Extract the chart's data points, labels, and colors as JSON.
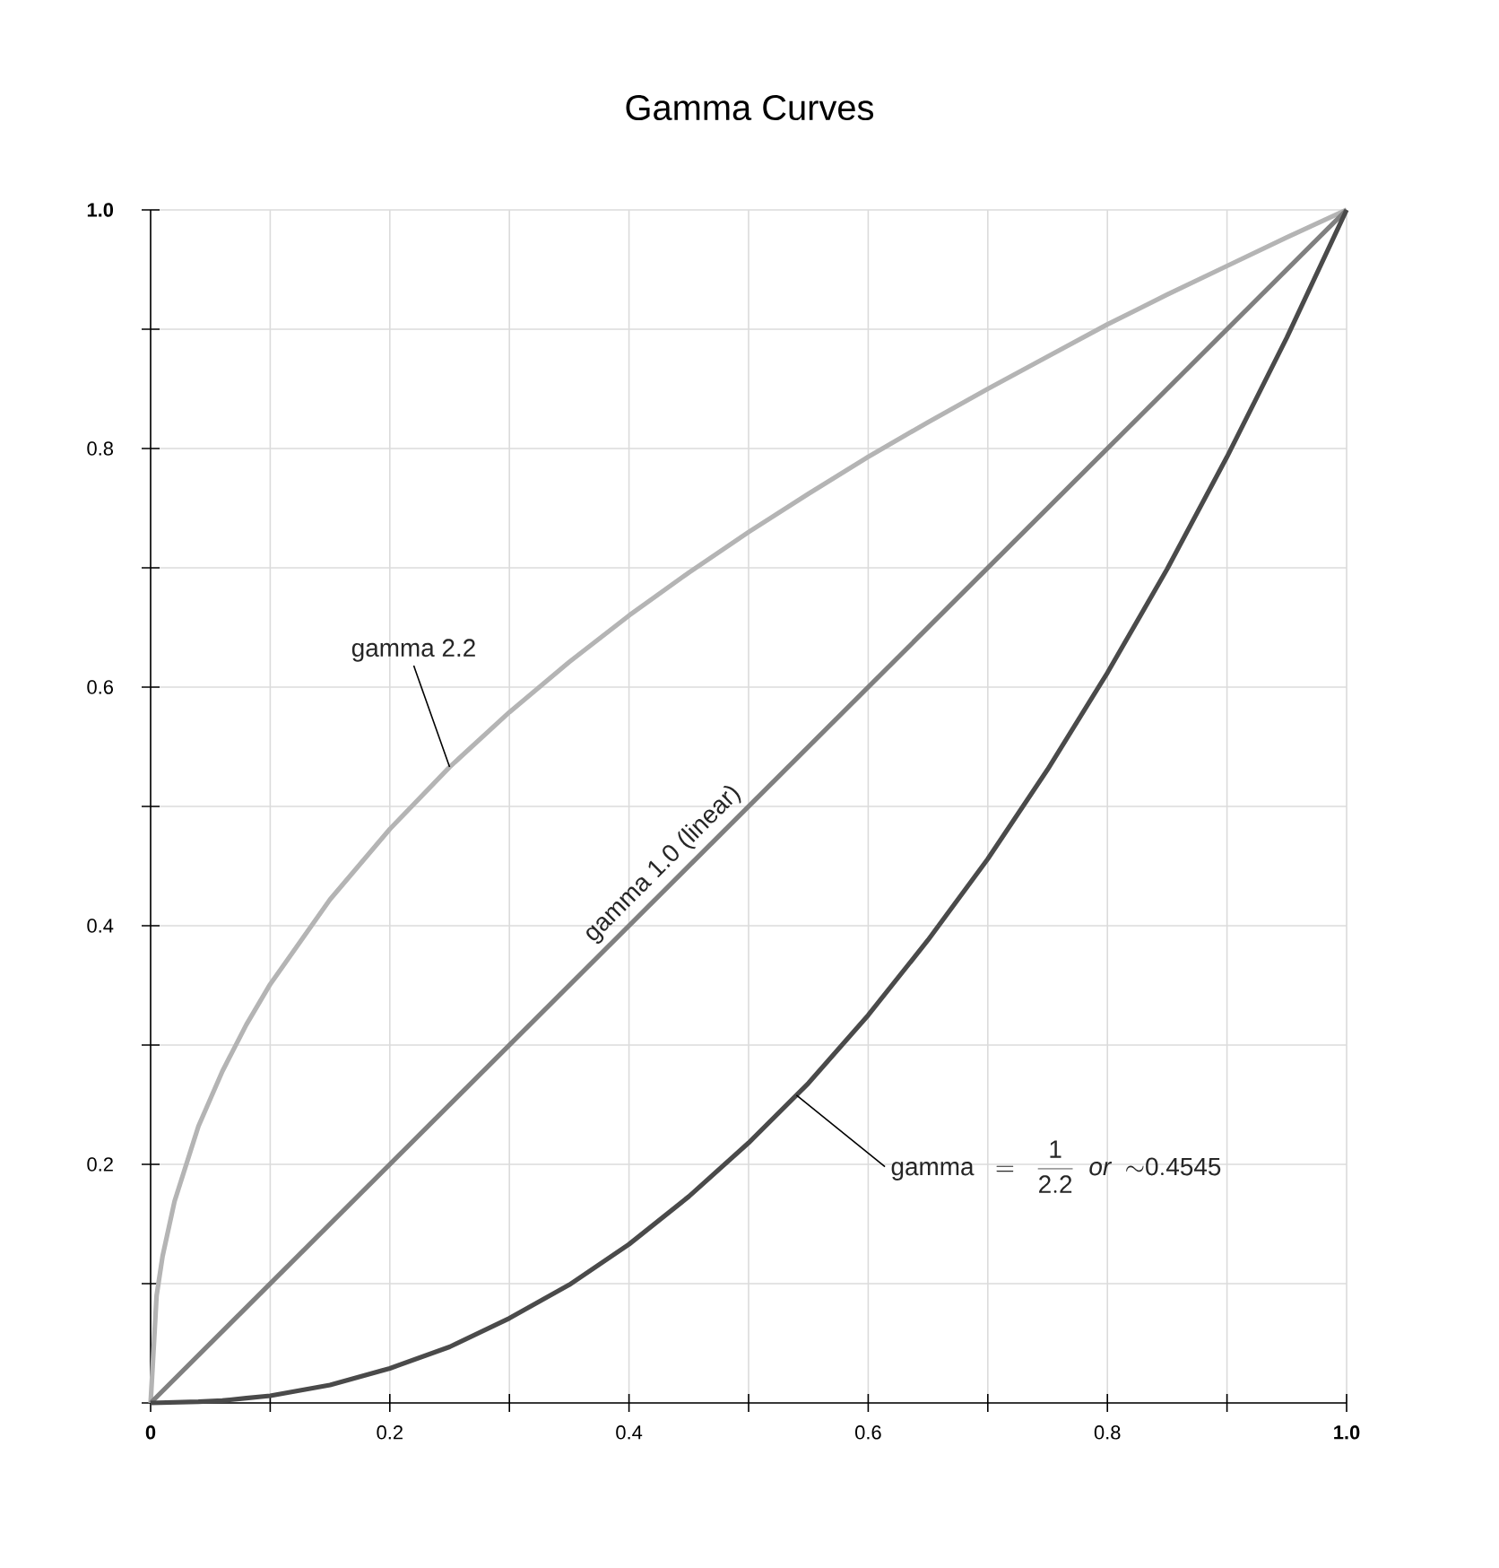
{
  "chart_data": {
    "type": "line",
    "title": "Gamma Curves",
    "xlim": [
      0,
      1
    ],
    "ylim": [
      0,
      1
    ],
    "xticks": [
      {
        "value": 0,
        "label": "0"
      },
      {
        "value": 0.1,
        "label": null
      },
      0.2,
      {
        "value": 0.3,
        "label": null
      },
      0.4,
      {
        "value": 0.5,
        "label": null
      },
      0.6,
      {
        "value": 0.7,
        "label": null
      },
      0.8,
      {
        "value": 0.9,
        "label": null
      },
      {
        "value": 1,
        "label": "1.0"
      }
    ],
    "yticks": [
      {
        "value": 0,
        "label": null
      },
      {
        "value": 0.1,
        "label": null
      },
      0.2,
      {
        "value": 0.3,
        "label": null
      },
      0.4,
      {
        "value": 0.5,
        "label": null
      },
      0.6,
      {
        "value": 0.7,
        "label": null
      },
      0.8,
      {
        "value": 0.9,
        "label": null
      },
      {
        "value": 1,
        "label": "1.0"
      }
    ],
    "grid": true,
    "series": [
      {
        "color": "#b4b4b4",
        "x": [
          0,
          0.005,
          0.01,
          0.02,
          0.04,
          0.06,
          0.08,
          0.1,
          0.15,
          0.2,
          0.25,
          0.3,
          0.35,
          0.4,
          0.45,
          0.5,
          0.55,
          0.6,
          0.65,
          0.7,
          0.75,
          0.8,
          0.85,
          0.9,
          0.95,
          1
        ],
        "values": [
          0,
          0.09,
          0.123,
          0.169,
          0.232,
          0.278,
          0.317,
          0.351,
          0.422,
          0.481,
          0.533,
          0.579,
          0.621,
          0.66,
          0.696,
          0.73,
          0.762,
          0.793,
          0.822,
          0.85,
          0.877,
          0.904,
          0.929,
          0.953,
          0.977,
          1
        ]
      },
      {
        "color": "#808080",
        "x": [
          0,
          1
        ],
        "values": [
          0,
          1
        ]
      },
      {
        "color": "#4a4a4a",
        "x": [
          0,
          0.04,
          0.06,
          0.08,
          0.1,
          0.15,
          0.2,
          0.25,
          0.3,
          0.35,
          0.4,
          0.45,
          0.5,
          0.55,
          0.6,
          0.65,
          0.7,
          0.75,
          0.8,
          0.85,
          0.9,
          0.95,
          1
        ],
        "values": [
          0,
          0.001,
          0.002,
          0.004,
          0.006,
          0.015,
          0.029,
          0.047,
          0.071,
          0.099,
          0.133,
          0.173,
          0.218,
          0.268,
          0.325,
          0.388,
          0.456,
          0.531,
          0.612,
          0.699,
          0.793,
          0.893,
          1
        ]
      }
    ],
    "annotations": [
      {
        "text": "gamma 2.2",
        "x": 0.25,
        "y": 0.533
      },
      {
        "text": "gamma 1.0 (linear)",
        "x": 0.44,
        "y": 0.44
      },
      {
        "text": "\\mathrm{gamma}\\ \\ =\\ \\ \\frac{\\mathrm{1}}{\\mathrm{2.2}}\\ \\ \\mathit{or}\\ \\ {\\sim}\\mathrm{0.4545}",
        "x": 0.54,
        "y": 0.258
      }
    ]
  }
}
